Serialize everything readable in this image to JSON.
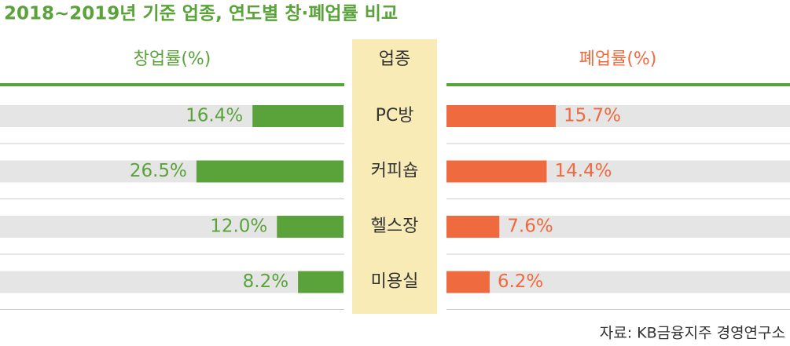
{
  "chart_data": {
    "type": "butterfly",
    "title": "2018~2019년 기준 업종, 연도별 창·폐업률 비교",
    "category_header": "업종",
    "categories": [
      "PC방",
      "커피숍",
      "헬스장",
      "미용실"
    ],
    "series": [
      {
        "name": "창업률(%)",
        "color": "#5aa33a",
        "values": [
          16.4,
          26.5,
          12.0,
          8.2
        ],
        "value_labels": [
          "16.4%",
          "26.5%",
          "12.0%",
          "8.2%"
        ]
      },
      {
        "name": "폐업률(%)",
        "color": "#ef6a3f",
        "values": [
          15.7,
          14.4,
          7.6,
          6.2
        ],
        "value_labels": [
          "15.7%",
          "14.4%",
          "7.6%",
          "6.2%"
        ]
      }
    ],
    "source": "자료: KB금융지주 경영연구소"
  }
}
